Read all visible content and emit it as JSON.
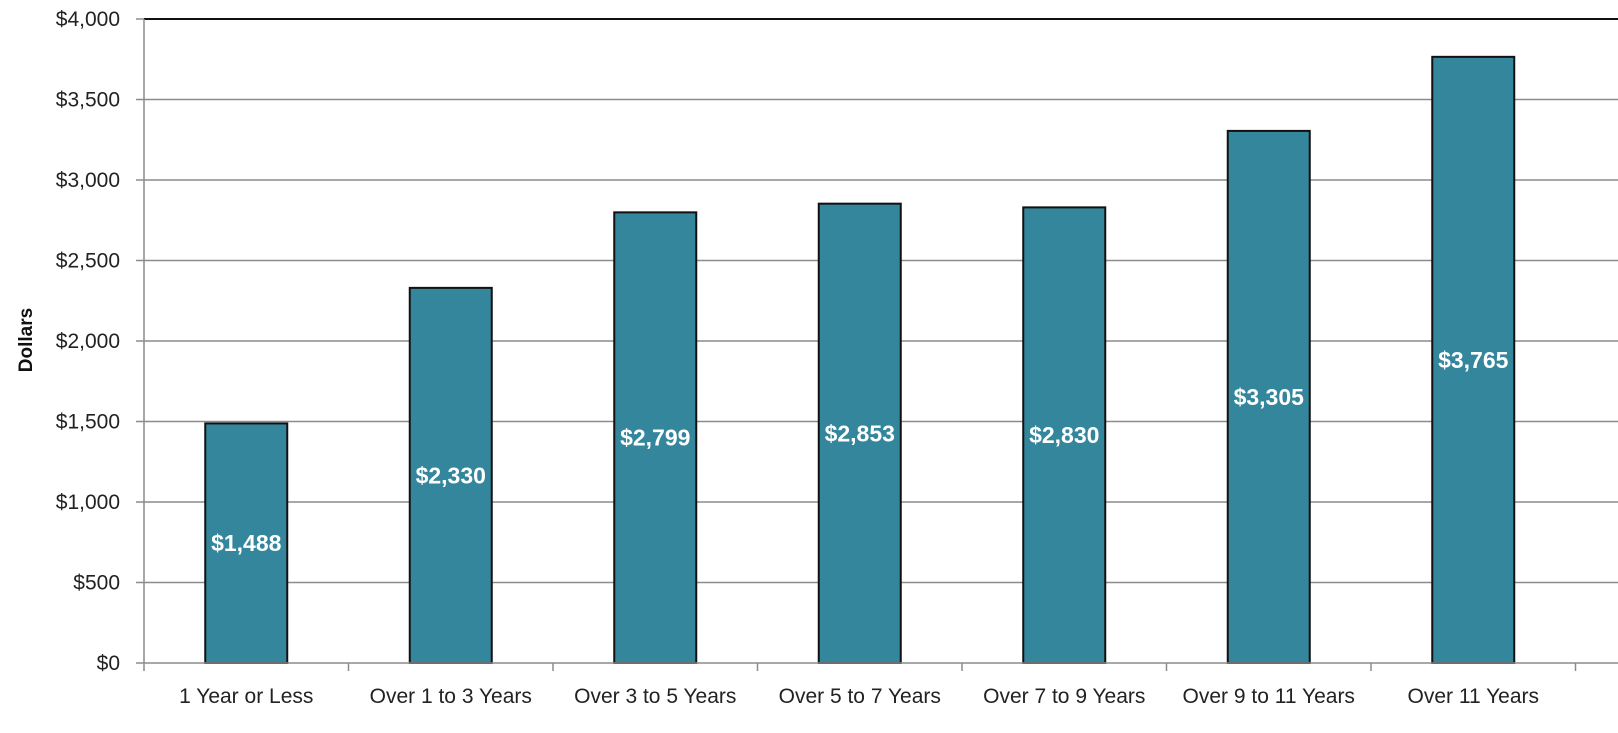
{
  "chart_data": {
    "type": "bar",
    "categories": [
      "1 Year or Less",
      "Over 1 to 3 Years",
      "Over 3 to 5 Years",
      "Over 5 to 7 Years",
      "Over 7 to 9 Years",
      "Over 9 to 11 Years",
      "Over 11 Years"
    ],
    "values": [
      1488,
      2330,
      2799,
      2853,
      2830,
      3305,
      3765
    ],
    "data_labels": [
      "$1,488",
      "$2,330",
      "$2,799",
      "$2,853",
      "$2,830",
      "$3,305",
      "$3,765"
    ],
    "title": "",
    "xlabel": "",
    "ylabel": "Dollars",
    "ylim": [
      0,
      4000
    ],
    "yticks": [
      0,
      500,
      1000,
      1500,
      2000,
      2500,
      3000,
      3500,
      4000
    ],
    "ytick_labels": [
      "$0",
      "$500",
      "$1,000",
      "$1,500",
      "$2,000",
      "$2,500",
      "$3,000",
      "$3,500",
      "$4,000"
    ],
    "grid": true,
    "legend": "none",
    "colors": {
      "bar": "#34869c",
      "bar_edge": "#111111",
      "grid": "#8c8c8c",
      "axis": "#8c8c8c",
      "label_text": "#ffffff"
    }
  }
}
